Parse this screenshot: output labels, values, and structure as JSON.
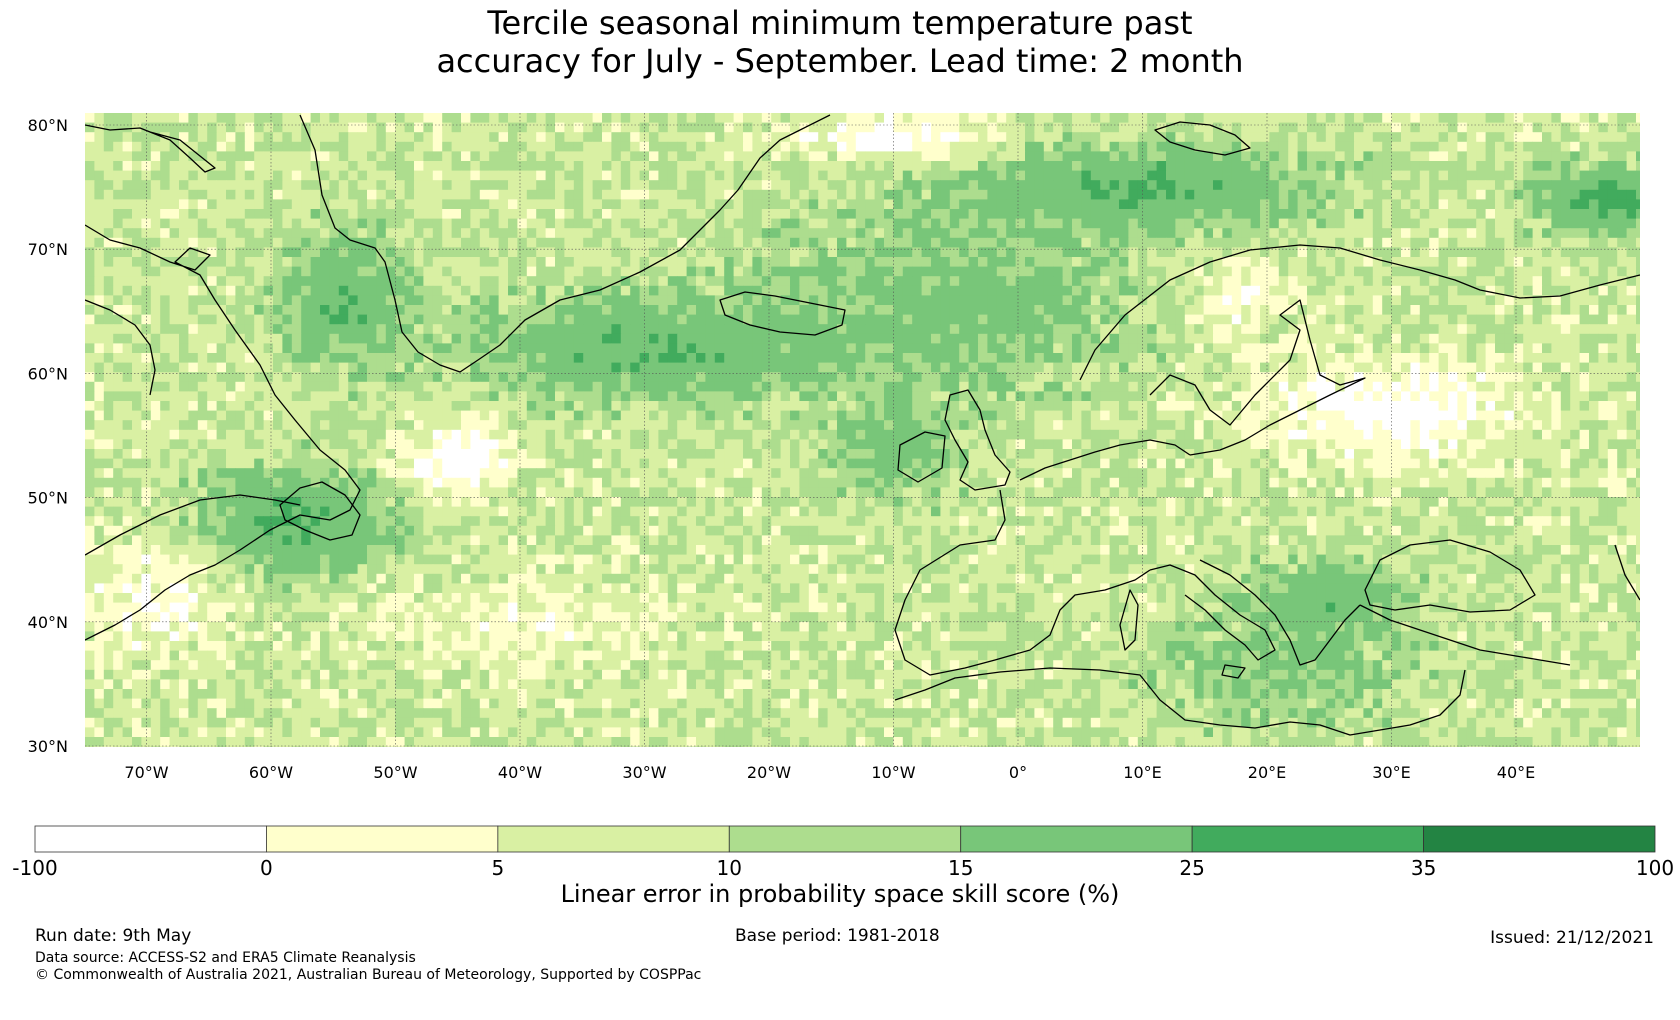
{
  "title": {
    "line1": "Tercile seasonal minimum temperature past",
    "line2": "accuracy for July - September. Lead time: 2 month"
  },
  "map": {
    "lon_range": [
      -75,
      50
    ],
    "lat_range": [
      30,
      81
    ],
    "lat_labels": [
      "80°N",
      "70°N",
      "60°N",
      "50°N",
      "40°N",
      "30°N"
    ],
    "lat_values": [
      80,
      70,
      60,
      50,
      40,
      30
    ],
    "lon_labels": [
      "70°W",
      "60°W",
      "50°W",
      "40°W",
      "30°W",
      "20°W",
      "10°W",
      "0°",
      "10°E",
      "20°E",
      "30°E",
      "40°E"
    ],
    "lon_values": [
      -70,
      -60,
      -50,
      -40,
      -30,
      -20,
      -10,
      0,
      10,
      20,
      30,
      40
    ],
    "gridlines": true,
    "coastline_color": "#000000"
  },
  "legend": {
    "bounds": [
      "-100",
      "0",
      "5",
      "10",
      "15",
      "25",
      "35",
      "100"
    ],
    "colors": [
      "#ffffff",
      "#ffffcc",
      "#d9f0a3",
      "#addd8e",
      "#78c679",
      "#41ab5d",
      "#238443"
    ],
    "label": "Linear error in probability space skill score (%)"
  },
  "footer": {
    "run_date": "Run date: 9th May",
    "base_period": "Base period: 1981-2018",
    "issued": "Issued: 21/12/2021",
    "data_source": "Data source: ACCESS-S2 and ERA5 Climate Reanalysis",
    "copyright": "© Commonwealth of Australia 2021, Australian Bureau of Meteorology, Supported by COSPPac"
  }
}
